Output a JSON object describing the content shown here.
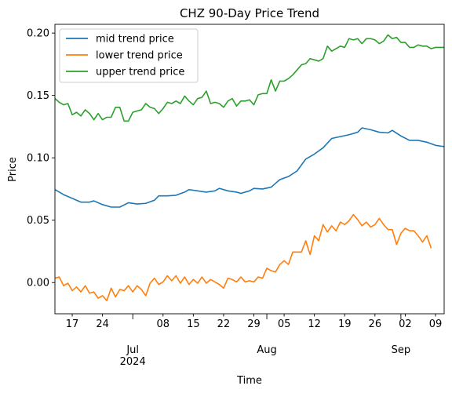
{
  "chart_data": {
    "type": "line",
    "title": "CHZ 90-Day Price Trend",
    "xlabel": "Time",
    "ylabel": "Price",
    "xlim": [
      "2024-06-13",
      "2024-09-11"
    ],
    "ylim": [
      -0.025,
      0.207
    ],
    "grid": false,
    "legend_position": "top-left",
    "y_ticks": [
      {
        "value": 0.0,
        "label": "0.00"
      },
      {
        "value": 0.05,
        "label": "0.05"
      },
      {
        "value": 0.1,
        "label": "0.10"
      },
      {
        "value": 0.15,
        "label": "0.15"
      },
      {
        "value": 0.2,
        "label": "0.20"
      }
    ],
    "x_ticks": [
      {
        "date": "2024-06-17",
        "label": "17"
      },
      {
        "date": "2024-06-24",
        "label": "24"
      },
      {
        "date": "2024-07-01",
        "label": "Jul\n2024"
      },
      {
        "date": "2024-07-08",
        "label": "08"
      },
      {
        "date": "2024-07-15",
        "label": "15"
      },
      {
        "date": "2024-07-22",
        "label": "22"
      },
      {
        "date": "2024-07-29",
        "label": "29"
      },
      {
        "date": "2024-08-01",
        "label": "Aug"
      },
      {
        "date": "2024-08-05",
        "label": "05"
      },
      {
        "date": "2024-08-12",
        "label": "12"
      },
      {
        "date": "2024-08-19",
        "label": "19"
      },
      {
        "date": "2024-08-26",
        "label": "26"
      },
      {
        "date": "2024-09-01",
        "label": "Sep"
      },
      {
        "date": "2024-09-02",
        "label": "02"
      },
      {
        "date": "2024-09-09",
        "label": "09"
      }
    ],
    "series": [
      {
        "name": "mid trend price",
        "color": "#1f77b4",
        "points": [
          [
            "2024-06-13",
            0.0745
          ],
          [
            "2024-06-15",
            0.0705
          ],
          [
            "2024-06-17",
            0.0675
          ],
          [
            "2024-06-19",
            0.0645
          ],
          [
            "2024-06-21",
            0.0645
          ],
          [
            "2024-06-22",
            0.0655
          ],
          [
            "2024-06-24",
            0.0625
          ],
          [
            "2024-06-26",
            0.0605
          ],
          [
            "2024-06-28",
            0.0605
          ],
          [
            "2024-06-30",
            0.064
          ],
          [
            "2024-07-02",
            0.063
          ],
          [
            "2024-07-04",
            0.0635
          ],
          [
            "2024-07-06",
            0.066
          ],
          [
            "2024-07-07",
            0.0695
          ],
          [
            "2024-07-09",
            0.0695
          ],
          [
            "2024-07-11",
            0.07
          ],
          [
            "2024-07-13",
            0.0725
          ],
          [
            "2024-07-14",
            0.0745
          ],
          [
            "2024-07-16",
            0.0735
          ],
          [
            "2024-07-18",
            0.0725
          ],
          [
            "2024-07-20",
            0.0735
          ],
          [
            "2024-07-21",
            0.0755
          ],
          [
            "2024-07-23",
            0.0735
          ],
          [
            "2024-07-25",
            0.0725
          ],
          [
            "2024-07-26",
            0.0715
          ],
          [
            "2024-07-28",
            0.0735
          ],
          [
            "2024-07-29",
            0.0755
          ],
          [
            "2024-07-31",
            0.075
          ],
          [
            "2024-08-02",
            0.0765
          ],
          [
            "2024-08-04",
            0.0825
          ],
          [
            "2024-08-06",
            0.085
          ],
          [
            "2024-08-08",
            0.0895
          ],
          [
            "2024-08-10",
            0.099
          ],
          [
            "2024-08-12",
            0.103
          ],
          [
            "2024-08-14",
            0.108
          ],
          [
            "2024-08-16",
            0.1155
          ],
          [
            "2024-08-18",
            0.117
          ],
          [
            "2024-08-20",
            0.1185
          ],
          [
            "2024-08-22",
            0.1205
          ],
          [
            "2024-08-23",
            0.124
          ],
          [
            "2024-08-25",
            0.1225
          ],
          [
            "2024-08-27",
            0.1205
          ],
          [
            "2024-08-29",
            0.12
          ],
          [
            "2024-08-30",
            0.122
          ],
          [
            "2024-09-01",
            0.1175
          ],
          [
            "2024-09-03",
            0.114
          ],
          [
            "2024-09-05",
            0.114
          ],
          [
            "2024-09-07",
            0.1125
          ],
          [
            "2024-09-09",
            0.11
          ],
          [
            "2024-09-11",
            0.109
          ]
        ]
      },
      {
        "name": "lower trend price",
        "color": "#ff7f0e",
        "points": [
          [
            "2024-06-13",
            0.0035
          ],
          [
            "2024-06-14",
            0.0045
          ],
          [
            "2024-06-15",
            -0.0025
          ],
          [
            "2024-06-16",
            -0.0005
          ],
          [
            "2024-06-17",
            -0.0065
          ],
          [
            "2024-06-18",
            -0.0035
          ],
          [
            "2024-06-19",
            -0.0075
          ],
          [
            "2024-06-20",
            -0.0025
          ],
          [
            "2024-06-21",
            -0.0085
          ],
          [
            "2024-06-22",
            -0.0075
          ],
          [
            "2024-06-23",
            -0.0125
          ],
          [
            "2024-06-24",
            -0.0105
          ],
          [
            "2024-06-25",
            -0.0145
          ],
          [
            "2024-06-26",
            -0.0045
          ],
          [
            "2024-06-27",
            -0.0115
          ],
          [
            "2024-06-28",
            -0.0055
          ],
          [
            "2024-06-29",
            -0.0065
          ],
          [
            "2024-06-30",
            -0.0025
          ],
          [
            "2024-07-01",
            -0.0075
          ],
          [
            "2024-07-02",
            -0.0025
          ],
          [
            "2024-07-03",
            -0.0055
          ],
          [
            "2024-07-04",
            -0.0105
          ],
          [
            "2024-07-05",
            -0.0005
          ],
          [
            "2024-07-06",
            0.0035
          ],
          [
            "2024-07-07",
            -0.0015
          ],
          [
            "2024-07-08",
            0.0005
          ],
          [
            "2024-07-09",
            0.0055
          ],
          [
            "2024-07-10",
            0.0015
          ],
          [
            "2024-07-11",
            0.0055
          ],
          [
            "2024-07-12",
            -0.0005
          ],
          [
            "2024-07-13",
            0.0045
          ],
          [
            "2024-07-14",
            -0.0015
          ],
          [
            "2024-07-15",
            0.0025
          ],
          [
            "2024-07-16",
            -0.0005
          ],
          [
            "2024-07-17",
            0.0045
          ],
          [
            "2024-07-18",
            -0.0005
          ],
          [
            "2024-07-19",
            0.0025
          ],
          [
            "2024-07-20",
            0.0005
          ],
          [
            "2024-07-21",
            -0.0015
          ],
          [
            "2024-07-22",
            -0.0045
          ],
          [
            "2024-07-23",
            0.0035
          ],
          [
            "2024-07-24",
            0.0025
          ],
          [
            "2024-07-25",
            0.0005
          ],
          [
            "2024-07-26",
            0.0045
          ],
          [
            "2024-07-27",
            0.0005
          ],
          [
            "2024-07-28",
            0.0015
          ],
          [
            "2024-07-29",
            0.0005
          ],
          [
            "2024-07-30",
            0.0045
          ],
          [
            "2024-07-31",
            0.0035
          ],
          [
            "2024-08-01",
            0.0115
          ],
          [
            "2024-08-02",
            0.0095
          ],
          [
            "2024-08-03",
            0.0085
          ],
          [
            "2024-08-04",
            0.0145
          ],
          [
            "2024-08-05",
            0.0175
          ],
          [
            "2024-08-06",
            0.0145
          ],
          [
            "2024-08-07",
            0.0245
          ],
          [
            "2024-08-08",
            0.0245
          ],
          [
            "2024-08-09",
            0.0245
          ],
          [
            "2024-08-10",
            0.0335
          ],
          [
            "2024-08-11",
            0.0225
          ],
          [
            "2024-08-12",
            0.0375
          ],
          [
            "2024-08-13",
            0.0335
          ],
          [
            "2024-08-14",
            0.0465
          ],
          [
            "2024-08-15",
            0.0405
          ],
          [
            "2024-08-16",
            0.0455
          ],
          [
            "2024-08-17",
            0.0415
          ],
          [
            "2024-08-18",
            0.0485
          ],
          [
            "2024-08-19",
            0.0465
          ],
          [
            "2024-08-20",
            0.0495
          ],
          [
            "2024-08-21",
            0.0545
          ],
          [
            "2024-08-22",
            0.0505
          ],
          [
            "2024-08-23",
            0.0455
          ],
          [
            "2024-08-24",
            0.0485
          ],
          [
            "2024-08-25",
            0.0445
          ],
          [
            "2024-08-26",
            0.0465
          ],
          [
            "2024-08-27",
            0.0515
          ],
          [
            "2024-08-28",
            0.0465
          ],
          [
            "2024-08-29",
            0.0425
          ],
          [
            "2024-08-30",
            0.0425
          ],
          [
            "2024-08-31",
            0.0305
          ],
          [
            "2024-09-01",
            0.0395
          ],
          [
            "2024-09-02",
            0.0435
          ],
          [
            "2024-09-03",
            0.0415
          ],
          [
            "2024-09-04",
            0.0415
          ],
          [
            "2024-09-05",
            0.0375
          ],
          [
            "2024-09-06",
            0.0325
          ],
          [
            "2024-09-07",
            0.0375
          ],
          [
            "2024-09-08",
            0.0275
          ]
        ]
      },
      {
        "name": "upper trend price",
        "color": "#2ca02c",
        "points": [
          [
            "2024-06-13",
            0.1475
          ],
          [
            "2024-06-14",
            0.1445
          ],
          [
            "2024-06-15",
            0.1425
          ],
          [
            "2024-06-16",
            0.1435
          ],
          [
            "2024-06-17",
            0.1345
          ],
          [
            "2024-06-18",
            0.1365
          ],
          [
            "2024-06-19",
            0.1335
          ],
          [
            "2024-06-20",
            0.1385
          ],
          [
            "2024-06-21",
            0.1355
          ],
          [
            "2024-06-22",
            0.1305
          ],
          [
            "2024-06-23",
            0.1355
          ],
          [
            "2024-06-24",
            0.1305
          ],
          [
            "2024-06-25",
            0.1325
          ],
          [
            "2024-06-26",
            0.1325
          ],
          [
            "2024-06-27",
            0.1405
          ],
          [
            "2024-06-28",
            0.1405
          ],
          [
            "2024-06-29",
            0.1295
          ],
          [
            "2024-06-30",
            0.1295
          ],
          [
            "2024-07-01",
            0.1365
          ],
          [
            "2024-07-02",
            0.1375
          ],
          [
            "2024-07-03",
            0.1385
          ],
          [
            "2024-07-04",
            0.1435
          ],
          [
            "2024-07-05",
            0.1405
          ],
          [
            "2024-07-06",
            0.1395
          ],
          [
            "2024-07-07",
            0.1355
          ],
          [
            "2024-07-08",
            0.1395
          ],
          [
            "2024-07-09",
            0.1445
          ],
          [
            "2024-07-10",
            0.1435
          ],
          [
            "2024-07-11",
            0.1455
          ],
          [
            "2024-07-12",
            0.1435
          ],
          [
            "2024-07-13",
            0.1495
          ],
          [
            "2024-07-14",
            0.1455
          ],
          [
            "2024-07-15",
            0.1425
          ],
          [
            "2024-07-16",
            0.1475
          ],
          [
            "2024-07-17",
            0.1485
          ],
          [
            "2024-07-18",
            0.1535
          ],
          [
            "2024-07-19",
            0.1435
          ],
          [
            "2024-07-20",
            0.1445
          ],
          [
            "2024-07-21",
            0.1435
          ],
          [
            "2024-07-22",
            0.1405
          ],
          [
            "2024-07-23",
            0.1455
          ],
          [
            "2024-07-24",
            0.1475
          ],
          [
            "2024-07-25",
            0.1415
          ],
          [
            "2024-07-26",
            0.1455
          ],
          [
            "2024-07-27",
            0.1455
          ],
          [
            "2024-07-28",
            0.1465
          ],
          [
            "2024-07-29",
            0.1425
          ],
          [
            "2024-07-30",
            0.1505
          ],
          [
            "2024-07-31",
            0.1515
          ],
          [
            "2024-08-01",
            0.1515
          ],
          [
            "2024-08-02",
            0.1625
          ],
          [
            "2024-08-03",
            0.1535
          ],
          [
            "2024-08-04",
            0.1615
          ],
          [
            "2024-08-05",
            0.1615
          ],
          [
            "2024-08-06",
            0.1635
          ],
          [
            "2024-08-07",
            0.1665
          ],
          [
            "2024-08-08",
            0.1705
          ],
          [
            "2024-08-09",
            0.1745
          ],
          [
            "2024-08-10",
            0.1755
          ],
          [
            "2024-08-11",
            0.1795
          ],
          [
            "2024-08-12",
            0.1785
          ],
          [
            "2024-08-13",
            0.1775
          ],
          [
            "2024-08-14",
            0.1795
          ],
          [
            "2024-08-15",
            0.1895
          ],
          [
            "2024-08-16",
            0.1855
          ],
          [
            "2024-08-17",
            0.1875
          ],
          [
            "2024-08-18",
            0.1895
          ],
          [
            "2024-08-19",
            0.1885
          ],
          [
            "2024-08-20",
            0.1955
          ],
          [
            "2024-08-21",
            0.1945
          ],
          [
            "2024-08-22",
            0.1955
          ],
          [
            "2024-08-23",
            0.1915
          ],
          [
            "2024-08-24",
            0.1955
          ],
          [
            "2024-08-25",
            0.1955
          ],
          [
            "2024-08-26",
            0.1945
          ],
          [
            "2024-08-27",
            0.1915
          ],
          [
            "2024-08-28",
            0.1935
          ],
          [
            "2024-08-29",
            0.1985
          ],
          [
            "2024-08-30",
            0.1955
          ],
          [
            "2024-08-31",
            0.1965
          ],
          [
            "2024-09-01",
            0.1925
          ],
          [
            "2024-09-02",
            0.1925
          ],
          [
            "2024-09-03",
            0.1885
          ],
          [
            "2024-09-04",
            0.1885
          ],
          [
            "2024-09-05",
            0.1905
          ],
          [
            "2024-09-06",
            0.1895
          ],
          [
            "2024-09-07",
            0.1895
          ],
          [
            "2024-09-08",
            0.1875
          ],
          [
            "2024-09-09",
            0.1885
          ],
          [
            "2024-09-11",
            0.1885
          ]
        ]
      }
    ]
  }
}
